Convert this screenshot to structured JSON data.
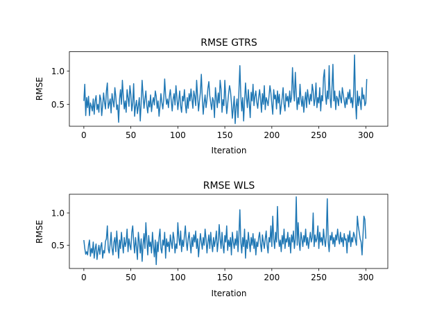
{
  "chart_data": [
    {
      "type": "line",
      "title": "RMSE GTRS",
      "xlabel": "Iteration",
      "ylabel": "RMSE",
      "xlim": [
        -15.4,
        323.4
      ],
      "ylim": [
        0.17,
        1.29
      ],
      "xticks": [
        0,
        50,
        100,
        150,
        200,
        250,
        300
      ],
      "xtick_labels": [
        "0",
        "50",
        "100",
        "150",
        "200",
        "250",
        "300"
      ],
      "yticks": [
        0.5,
        1.0
      ],
      "ytick_labels": [
        "0.5",
        "1.0"
      ],
      "grid": false,
      "color": "#1f77b4",
      "series": [
        {
          "x_start": 0,
          "x_step": 1,
          "values": [
            0.55,
            0.8,
            0.33,
            0.6,
            0.45,
            0.62,
            0.33,
            0.52,
            0.47,
            0.4,
            0.58,
            0.35,
            0.55,
            0.63,
            0.42,
            0.5,
            0.38,
            0.64,
            0.58,
            0.33,
            0.48,
            0.67,
            0.53,
            0.43,
            0.7,
            0.82,
            0.44,
            0.51,
            0.58,
            0.37,
            0.66,
            0.55,
            0.46,
            0.75,
            0.62,
            0.42,
            0.49,
            0.23,
            0.58,
            0.72,
            0.5,
            0.86,
            0.62,
            0.43,
            0.55,
            0.38,
            0.72,
            0.6,
            0.47,
            0.78,
            0.65,
            0.4,
            0.52,
            0.81,
            0.32,
            0.47,
            0.56,
            0.36,
            0.48,
            0.6,
            0.25,
            0.52,
            0.86,
            0.64,
            0.44,
            0.58,
            0.7,
            0.48,
            0.37,
            0.55,
            0.46,
            0.64,
            0.39,
            0.53,
            0.6,
            0.49,
            0.7,
            0.62,
            0.44,
            0.55,
            0.32,
            0.47,
            0.66,
            0.53,
            0.43,
            0.57,
            0.88,
            0.63,
            0.5,
            0.58,
            0.45,
            0.62,
            0.72,
            0.55,
            0.4,
            0.58,
            0.66,
            0.49,
            0.78,
            0.61,
            0.42,
            0.56,
            0.7,
            0.47,
            0.38,
            0.62,
            0.55,
            0.72,
            0.5,
            0.37,
            0.6,
            0.44,
            0.66,
            0.55,
            0.73,
            0.58,
            0.44,
            0.7,
            0.62,
            0.48,
            0.86,
            0.63,
            0.4,
            0.55,
            0.68,
            0.95,
            0.6,
            0.35,
            0.52,
            0.64,
            0.45,
            0.57,
            0.74,
            0.84,
            0.63,
            0.52,
            0.42,
            0.6,
            0.55,
            0.3,
            0.75,
            0.6,
            0.45,
            0.67,
            0.52,
            0.86,
            0.73,
            0.38,
            0.57,
            0.48,
            0.86,
            0.6,
            0.36,
            0.5,
            0.66,
            0.78,
            0.7,
            0.53,
            0.29,
            0.45,
            0.62,
            0.21,
            0.47,
            0.58,
            0.3,
            0.7,
            1.08,
            0.63,
            0.4,
            0.6,
            0.25,
            0.55,
            0.82,
            0.6,
            0.45,
            0.72,
            0.52,
            0.3,
            0.68,
            0.55,
            0.8,
            0.48,
            0.62,
            0.7,
            0.53,
            0.44,
            0.6,
            0.72,
            0.58,
            0.38,
            0.66,
            0.5,
            0.78,
            0.42,
            0.6,
            0.55,
            0.48,
            0.62,
            0.78,
            0.67,
            0.5,
            0.35,
            0.72,
            0.58,
            0.64,
            0.43,
            0.7,
            0.52,
            0.65,
            0.35,
            0.48,
            0.6,
            0.75,
            0.5,
            0.4,
            0.66,
            0.55,
            0.62,
            0.46,
            0.7,
            0.53,
            0.6,
            1.05,
            0.72,
            0.55,
            0.98,
            0.65,
            0.42,
            0.6,
            0.5,
            0.8,
            0.58,
            0.47,
            0.62,
            0.38,
            0.55,
            0.68,
            0.45,
            0.72,
            0.6,
            0.5,
            0.65,
            0.55,
            0.8,
            0.7,
            0.48,
            0.58,
            0.82,
            0.45,
            0.6,
            0.52,
            0.75,
            0.4,
            0.63,
            0.55,
            0.9,
            1.02,
            0.65,
            0.5,
            0.7,
            0.58,
            1.08,
            0.6,
            0.45,
            0.75,
            1.1,
            0.55,
            0.7,
            0.42,
            0.62,
            0.58,
            0.48,
            0.7,
            0.6,
            0.52,
            0.75,
            0.65,
            0.55,
            0.45,
            0.6,
            0.5,
            0.68,
            0.58,
            0.72,
            0.52,
            0.6,
            0.45,
            0.65,
            1.24,
            0.55,
            0.28,
            0.7,
            0.48,
            0.62,
            0.55,
            0.42,
            0.75,
            0.58,
            0.64,
            0.48,
            0.52,
            0.88
          ]
        }
      ]
    },
    {
      "type": "line",
      "title": "RMSE WLS",
      "xlabel": "Iteration",
      "ylabel": "RMSE",
      "xlim": [
        -15.4,
        323.4
      ],
      "ylim": [
        0.14,
        1.29
      ],
      "xticks": [
        0,
        50,
        100,
        150,
        200,
        250,
        300
      ],
      "xtick_labels": [
        "0",
        "50",
        "100",
        "150",
        "200",
        "250",
        "300"
      ],
      "yticks": [
        0.5,
        1.0
      ],
      "ytick_labels": [
        "0.5",
        "1.0"
      ],
      "grid": false,
      "color": "#1f77b4",
      "series": [
        {
          "x_start": 0,
          "x_step": 1,
          "values": [
            0.58,
            0.45,
            0.36,
            0.4,
            0.35,
            0.5,
            0.58,
            0.33,
            0.45,
            0.38,
            0.55,
            0.3,
            0.44,
            0.52,
            0.28,
            0.4,
            0.5,
            0.36,
            0.48,
            0.54,
            0.3,
            0.42,
            0.38,
            0.56,
            0.6,
            0.8,
            0.44,
            0.38,
            0.52,
            0.7,
            0.45,
            0.35,
            0.55,
            0.62,
            0.4,
            0.72,
            0.5,
            0.3,
            0.58,
            0.45,
            0.7,
            0.53,
            0.38,
            0.62,
            0.48,
            0.55,
            0.75,
            0.4,
            0.6,
            0.5,
            0.43,
            0.7,
            0.8,
            0.55,
            0.38,
            0.62,
            0.47,
            0.28,
            0.7,
            0.55,
            0.38,
            0.6,
            0.25,
            0.5,
            0.68,
            0.45,
            0.85,
            0.58,
            0.35,
            0.65,
            0.48,
            0.55,
            0.38,
            0.7,
            0.5,
            0.32,
            0.58,
            0.2,
            0.55,
            0.4,
            0.62,
            0.75,
            0.45,
            0.38,
            0.58,
            0.5,
            0.7,
            0.3,
            0.6,
            0.48,
            0.55,
            0.4,
            0.66,
            0.54,
            0.45,
            0.7,
            0.6,
            0.38,
            0.52,
            0.45,
            0.85,
            0.62,
            0.5,
            0.72,
            0.4,
            0.58,
            0.48,
            0.65,
            0.8,
            0.55,
            0.42,
            0.6,
            0.7,
            0.53,
            0.38,
            0.62,
            0.48,
            0.66,
            0.55,
            0.72,
            0.45,
            0.6,
            0.32,
            0.5,
            0.68,
            0.55,
            0.44,
            0.62,
            0.5,
            0.75,
            0.6,
            0.38,
            0.55,
            0.66,
            0.45,
            0.7,
            0.52,
            0.4,
            0.62,
            0.48,
            0.58,
            0.72,
            0.4,
            0.55,
            0.82,
            0.6,
            0.45,
            0.7,
            0.5,
            0.38,
            0.65,
            0.55,
            0.8,
            0.42,
            0.58,
            0.48,
            0.62,
            0.35,
            0.7,
            0.55,
            0.45,
            0.6,
            0.5,
            0.72,
            0.4,
            0.65,
            1.05,
            0.55,
            0.38,
            0.62,
            0.48,
            0.75,
            0.3,
            0.58,
            0.45,
            0.7,
            0.55,
            0.4,
            0.62,
            0.5,
            0.68,
            0.45,
            0.6,
            0.35,
            0.55,
            0.48,
            0.62,
            0.7,
            0.52,
            0.4,
            0.66,
            0.55,
            0.45,
            0.6,
            0.72,
            0.5,
            0.38,
            0.62,
            0.55,
            0.8,
            0.48,
            0.95,
            0.6,
            0.45,
            0.7,
            0.55,
            1.1,
            0.62,
            0.48,
            0.58,
            0.4,
            0.65,
            0.52,
            0.75,
            0.45,
            0.6,
            0.55,
            0.7,
            0.48,
            0.62,
            0.38,
            0.66,
            0.55,
            0.72,
            0.45,
            0.6,
            1.25,
            0.5,
            0.85,
            0.55,
            0.42,
            0.7,
            0.6,
            0.48,
            0.65,
            0.55,
            0.75,
            0.5,
            0.62,
            0.45,
            0.58,
            0.7,
            0.55,
            0.62,
            1.0,
            0.48,
            0.66,
            0.55,
            0.6,
            0.8,
            0.45,
            0.7,
            0.55,
            0.62,
            0.5,
            0.75,
            0.58,
            0.48,
            0.66,
            1.22,
            0.55,
            0.4,
            0.65,
            0.58,
            0.7,
            0.52,
            0.62,
            0.48,
            0.66,
            0.58,
            0.75,
            0.6,
            0.52,
            0.7,
            0.55,
            0.62,
            0.48,
            0.68,
            0.58,
            0.6,
            0.38,
            0.66,
            0.55,
            0.72,
            0.48,
            0.62,
            0.55,
            0.7,
            0.65,
            0.58,
            0.5,
            0.95,
            0.8,
            0.7,
            0.6,
            0.55,
            0.35,
            0.65,
            0.95,
            0.9,
            0.6
          ]
        }
      ]
    }
  ]
}
